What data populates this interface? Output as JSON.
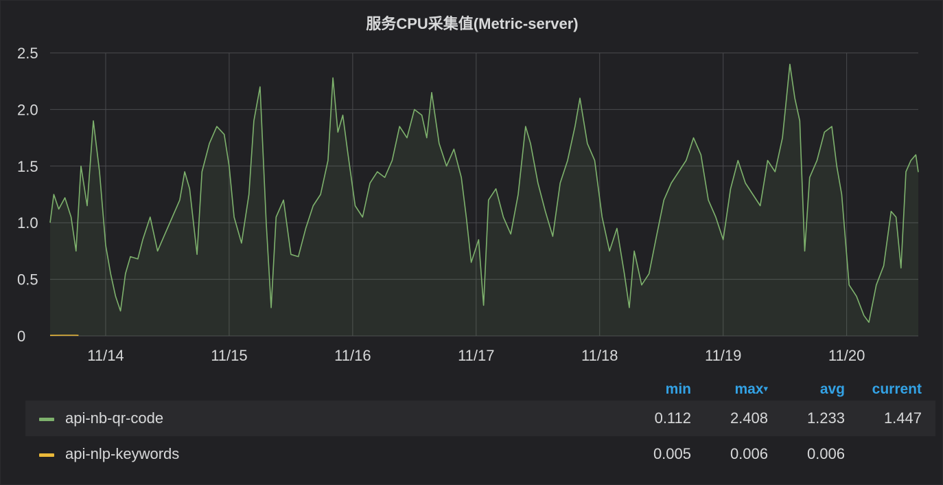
{
  "panel": {
    "title": "服务CPU采集值(Metric-server)"
  },
  "chart_data": {
    "type": "area",
    "x_ticks": [
      "11/14",
      "11/15",
      "11/16",
      "11/17",
      "11/18",
      "11/19",
      "11/20"
    ],
    "y_ticks": [
      "0",
      "0.5",
      "1.0",
      "1.5",
      "2.0",
      "2.5"
    ],
    "ylim": [
      0,
      2.5
    ],
    "x_range_days": [
      13.55,
      20.58
    ],
    "grid": true,
    "series": [
      {
        "name": "api-nb-qr-code",
        "color": "#7eb26d",
        "fill": true,
        "points": [
          [
            13.55,
            1.0
          ],
          [
            13.58,
            1.25
          ],
          [
            13.62,
            1.12
          ],
          [
            13.67,
            1.22
          ],
          [
            13.72,
            1.05
          ],
          [
            13.76,
            0.75
          ],
          [
            13.8,
            1.5
          ],
          [
            13.85,
            1.15
          ],
          [
            13.9,
            1.9
          ],
          [
            13.95,
            1.45
          ],
          [
            14.0,
            0.8
          ],
          [
            14.04,
            0.55
          ],
          [
            14.08,
            0.35
          ],
          [
            14.12,
            0.22
          ],
          [
            14.16,
            0.55
          ],
          [
            14.2,
            0.7
          ],
          [
            14.26,
            0.68
          ],
          [
            14.3,
            0.85
          ],
          [
            14.36,
            1.05
          ],
          [
            14.42,
            0.75
          ],
          [
            14.48,
            0.9
          ],
          [
            14.54,
            1.05
          ],
          [
            14.6,
            1.2
          ],
          [
            14.64,
            1.45
          ],
          [
            14.68,
            1.3
          ],
          [
            14.74,
            0.72
          ],
          [
            14.78,
            1.45
          ],
          [
            14.84,
            1.7
          ],
          [
            14.9,
            1.85
          ],
          [
            14.96,
            1.78
          ],
          [
            15.0,
            1.5
          ],
          [
            15.04,
            1.05
          ],
          [
            15.1,
            0.82
          ],
          [
            15.16,
            1.25
          ],
          [
            15.2,
            1.9
          ],
          [
            15.25,
            2.2
          ],
          [
            15.3,
            1.0
          ],
          [
            15.34,
            0.25
          ],
          [
            15.38,
            1.05
          ],
          [
            15.44,
            1.2
          ],
          [
            15.5,
            0.72
          ],
          [
            15.56,
            0.7
          ],
          [
            15.62,
            0.95
          ],
          [
            15.68,
            1.15
          ],
          [
            15.74,
            1.25
          ],
          [
            15.8,
            1.55
          ],
          [
            15.84,
            2.28
          ],
          [
            15.88,
            1.8
          ],
          [
            15.92,
            1.95
          ],
          [
            15.96,
            1.62
          ],
          [
            16.02,
            1.15
          ],
          [
            16.08,
            1.05
          ],
          [
            16.14,
            1.35
          ],
          [
            16.2,
            1.45
          ],
          [
            16.26,
            1.4
          ],
          [
            16.32,
            1.55
          ],
          [
            16.38,
            1.85
          ],
          [
            16.44,
            1.75
          ],
          [
            16.5,
            2.0
          ],
          [
            16.56,
            1.95
          ],
          [
            16.6,
            1.75
          ],
          [
            16.64,
            2.15
          ],
          [
            16.7,
            1.7
          ],
          [
            16.76,
            1.5
          ],
          [
            16.82,
            1.65
          ],
          [
            16.88,
            1.4
          ],
          [
            16.92,
            1.05
          ],
          [
            16.96,
            0.65
          ],
          [
            17.02,
            0.85
          ],
          [
            17.06,
            0.27
          ],
          [
            17.1,
            1.2
          ],
          [
            17.16,
            1.3
          ],
          [
            17.22,
            1.05
          ],
          [
            17.28,
            0.9
          ],
          [
            17.34,
            1.25
          ],
          [
            17.4,
            1.85
          ],
          [
            17.44,
            1.7
          ],
          [
            17.5,
            1.35
          ],
          [
            17.56,
            1.1
          ],
          [
            17.62,
            0.88
          ],
          [
            17.68,
            1.35
          ],
          [
            17.74,
            1.55
          ],
          [
            17.8,
            1.85
          ],
          [
            17.84,
            2.1
          ],
          [
            17.9,
            1.7
          ],
          [
            17.96,
            1.55
          ],
          [
            18.02,
            1.05
          ],
          [
            18.08,
            0.75
          ],
          [
            18.14,
            0.95
          ],
          [
            18.2,
            0.55
          ],
          [
            18.24,
            0.25
          ],
          [
            18.28,
            0.75
          ],
          [
            18.34,
            0.45
          ],
          [
            18.4,
            0.55
          ],
          [
            18.46,
            0.88
          ],
          [
            18.52,
            1.2
          ],
          [
            18.58,
            1.35
          ],
          [
            18.64,
            1.45
          ],
          [
            18.7,
            1.55
          ],
          [
            18.76,
            1.75
          ],
          [
            18.82,
            1.6
          ],
          [
            18.88,
            1.2
          ],
          [
            18.94,
            1.05
          ],
          [
            19.0,
            0.85
          ],
          [
            19.06,
            1.3
          ],
          [
            19.12,
            1.55
          ],
          [
            19.18,
            1.35
          ],
          [
            19.24,
            1.25
          ],
          [
            19.3,
            1.15
          ],
          [
            19.36,
            1.55
          ],
          [
            19.42,
            1.45
          ],
          [
            19.48,
            1.75
          ],
          [
            19.54,
            2.4
          ],
          [
            19.58,
            2.1
          ],
          [
            19.62,
            1.9
          ],
          [
            19.66,
            0.75
          ],
          [
            19.7,
            1.4
          ],
          [
            19.76,
            1.55
          ],
          [
            19.82,
            1.8
          ],
          [
            19.88,
            1.85
          ],
          [
            19.92,
            1.5
          ],
          [
            19.96,
            1.25
          ],
          [
            20.02,
            0.45
          ],
          [
            20.08,
            0.35
          ],
          [
            20.14,
            0.18
          ],
          [
            20.18,
            0.12
          ],
          [
            20.24,
            0.45
          ],
          [
            20.3,
            0.62
          ],
          [
            20.36,
            1.1
          ],
          [
            20.4,
            1.05
          ],
          [
            20.44,
            0.6
          ],
          [
            20.48,
            1.45
          ],
          [
            20.52,
            1.55
          ],
          [
            20.56,
            1.6
          ],
          [
            20.58,
            1.447
          ]
        ]
      },
      {
        "name": "api-nlp-keywords",
        "color": "#eab839",
        "fill": false,
        "points": [
          [
            13.55,
            0.005
          ],
          [
            13.65,
            0.006
          ],
          [
            13.76,
            0.006
          ],
          [
            13.78,
            0.005
          ]
        ]
      }
    ]
  },
  "legend": {
    "headers": {
      "min": "min",
      "max": "max",
      "avg": "avg",
      "current": "current"
    },
    "sort_caret": "▾",
    "rows": [
      {
        "name": "api-nb-qr-code",
        "color": "#7eb26d",
        "min": "0.112",
        "max": "2.408",
        "avg": "1.233",
        "current": "1.447"
      },
      {
        "name": "api-nlp-keywords",
        "color": "#eab839",
        "min": "0.005",
        "max": "0.006",
        "avg": "0.006",
        "current": ""
      }
    ]
  }
}
